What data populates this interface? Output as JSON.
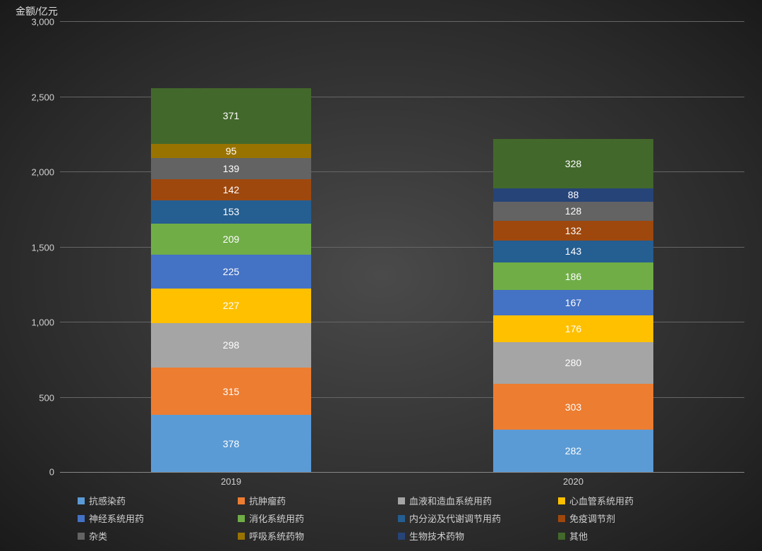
{
  "chart": {
    "type": "stacked-bar",
    "y_axis_title": "金额/亿元",
    "y_axis_title_fontsize": 14,
    "label_fontsize": 14,
    "axis_tick_fontsize": 13,
    "legend_fontsize": 13,
    "value_label_color": "#ffffff",
    "axis_text_color": "#d0d0d0",
    "gridline_color": "#666666",
    "background": "radial-gradient(#4a4a4a,#1a1a1a)",
    "ylim": [
      0,
      3000
    ],
    "ytick_step": 500,
    "yticks": [
      "0",
      "500",
      "1,000",
      "1,500",
      "2,000",
      "2,500",
      "3,000"
    ],
    "categories": [
      "2019",
      "2020"
    ],
    "bar_width_ratio": 0.47,
    "series": [
      {
        "name": "抗感染药",
        "color": "#5b9bd5",
        "values": [
          378,
          282
        ]
      },
      {
        "name": "抗肿瘤药",
        "color": "#ed7d31",
        "values": [
          315,
          303
        ]
      },
      {
        "name": "血液和造血系统用药",
        "color": "#a5a5a5",
        "values": [
          298,
          280
        ]
      },
      {
        "name": "心血管系统用药",
        "color": "#ffc000",
        "values": [
          227,
          176
        ]
      },
      {
        "name": "神经系统用药",
        "color": "#4472c4",
        "values": [
          225,
          167
        ]
      },
      {
        "name": "消化系统用药",
        "color": "#70ad47",
        "values": [
          209,
          186
        ]
      },
      {
        "name": "内分泌及代谢调节用药",
        "color": "#255e91",
        "values": [
          153,
          143
        ]
      },
      {
        "name": "免疫调节剂",
        "color": "#9e480e",
        "values": [
          142,
          132
        ]
      },
      {
        "name": "杂类",
        "color": "#636363",
        "values": [
          139,
          128
        ]
      },
      {
        "name": "呼吸系统药物",
        "color": "#997300",
        "values": [
          95,
          null
        ]
      },
      {
        "name": "生物技术药物",
        "color": "#264478",
        "values": [
          null,
          88
        ]
      },
      {
        "name": "其他",
        "color": "#43682b",
        "values": [
          371,
          328
        ]
      }
    ]
  }
}
